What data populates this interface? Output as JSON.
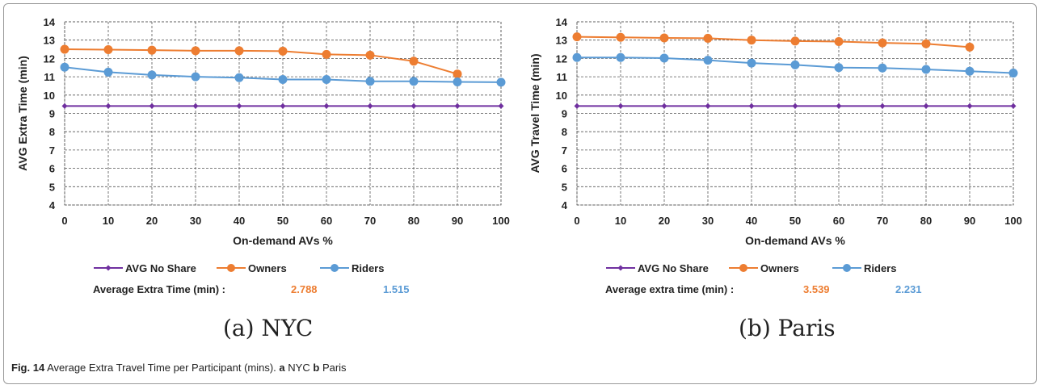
{
  "figure": {
    "caption_label": "Fig. 14",
    "caption_text": "Average Extra Travel Time per Participant (mins).",
    "caption_a_letter": "a",
    "caption_a_text": "NYC",
    "caption_b_letter": "b",
    "caption_b_text": "Paris",
    "subcaption_a": "(a) NYC",
    "subcaption_b": "(b) Paris"
  },
  "colors": {
    "no_share": "#7030a0",
    "owners": "#ed7d31",
    "riders": "#5b9bd5",
    "grid": "#555555"
  },
  "chart_data": [
    {
      "id": "a",
      "type": "line",
      "xlabel": "On-demand AVs %",
      "ylabel": "AVG Extra Time (min)",
      "x": [
        0,
        10,
        20,
        30,
        40,
        50,
        60,
        70,
        80,
        90,
        100
      ],
      "ylim": [
        4,
        14
      ],
      "yticks": [
        4,
        5,
        6,
        7,
        8,
        9,
        10,
        11,
        12,
        13,
        14
      ],
      "grid": true,
      "legend": "bottom",
      "series": [
        {
          "name": "AVG No Share",
          "color": "#7030a0",
          "marker": "diamond",
          "values": [
            9.4,
            9.4,
            9.4,
            9.4,
            9.4,
            9.4,
            9.4,
            9.4,
            9.4,
            9.4,
            9.4
          ]
        },
        {
          "name": "Owners",
          "color": "#ed7d31",
          "marker": "circle",
          "values": [
            12.5,
            12.48,
            12.45,
            12.42,
            12.42,
            12.4,
            12.22,
            12.18,
            11.85,
            11.15,
            null
          ]
        },
        {
          "name": "Riders",
          "color": "#5b9bd5",
          "marker": "circle",
          "values": [
            11.52,
            11.25,
            11.1,
            11.0,
            10.95,
            10.85,
            10.85,
            10.75,
            10.75,
            10.72,
            10.7
          ]
        }
      ],
      "annotation": {
        "label": "Average Extra Time (min) :",
        "owners_value": "2.788",
        "riders_value": "1.515"
      }
    },
    {
      "id": "b",
      "type": "line",
      "xlabel": "On-demand AVs %",
      "ylabel": "AVG Travel Time (min)",
      "x": [
        0,
        10,
        20,
        30,
        40,
        50,
        60,
        70,
        80,
        90,
        100
      ],
      "ylim": [
        4,
        14
      ],
      "yticks": [
        4,
        5,
        6,
        7,
        8,
        9,
        10,
        11,
        12,
        13,
        14
      ],
      "grid": true,
      "legend": "bottom",
      "series": [
        {
          "name": "AVG No Share",
          "color": "#7030a0",
          "marker": "diamond",
          "values": [
            9.4,
            9.4,
            9.4,
            9.4,
            9.4,
            9.4,
            9.4,
            9.4,
            9.4,
            9.4,
            9.4
          ]
        },
        {
          "name": "Owners",
          "color": "#ed7d31",
          "marker": "circle",
          "values": [
            13.18,
            13.15,
            13.12,
            13.1,
            13.0,
            12.95,
            12.92,
            12.85,
            12.8,
            12.62,
            null
          ]
        },
        {
          "name": "Riders",
          "color": "#5b9bd5",
          "marker": "circle",
          "values": [
            12.05,
            12.05,
            12.02,
            11.9,
            11.75,
            11.65,
            11.5,
            11.48,
            11.4,
            11.3,
            11.2
          ]
        }
      ],
      "annotation": {
        "label": "Average extra time (min) :",
        "owners_value": "3.539",
        "riders_value": "2.231"
      }
    }
  ]
}
